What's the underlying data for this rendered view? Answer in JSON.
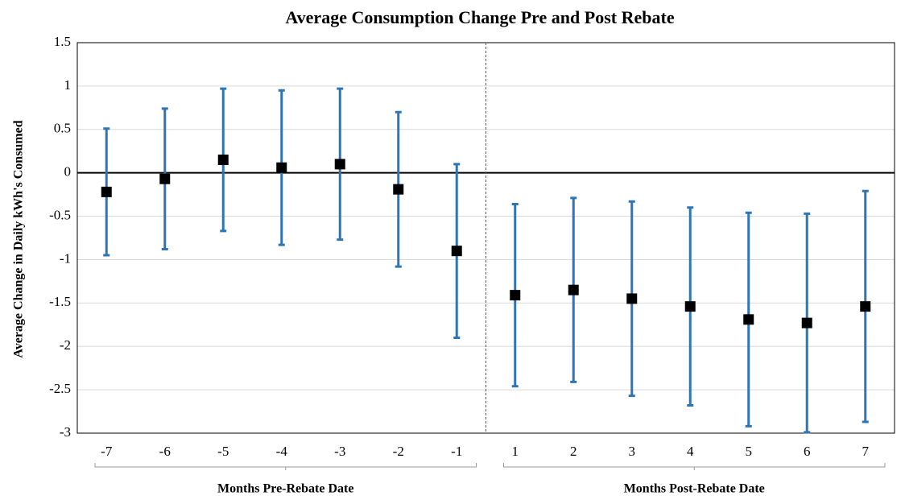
{
  "chart_data": {
    "type": "errorbar",
    "title": "Average Consumption Change Pre and Post Rebate",
    "y_label": "Average Change in Daily kWh's Consumed",
    "categories": [
      -7,
      -6,
      -5,
      -4,
      -3,
      -2,
      -1,
      1,
      2,
      3,
      4,
      5,
      6,
      7
    ],
    "groups": [
      "Months Pre-Rebate Date",
      "Months Post-Rebate Date"
    ],
    "values": [
      -0.22,
      -0.07,
      0.15,
      0.06,
      0.1,
      -0.19,
      -0.9,
      -1.41,
      -1.35,
      -1.45,
      -1.54,
      -1.69,
      -1.73,
      -1.54
    ],
    "errors": [
      0.73,
      0.81,
      0.82,
      0.89,
      0.87,
      0.89,
      1.0,
      1.05,
      1.06,
      1.12,
      1.14,
      1.23,
      1.26,
      1.33
    ],
    "marker_color": "#000000",
    "error_color": "#2e75b6",
    "ylim": [
      -3,
      1.5
    ],
    "yticks": [
      -3,
      -2.5,
      -2,
      -1.5,
      -1,
      -0.5,
      0,
      0.5,
      1,
      1.5
    ],
    "grid": true
  }
}
